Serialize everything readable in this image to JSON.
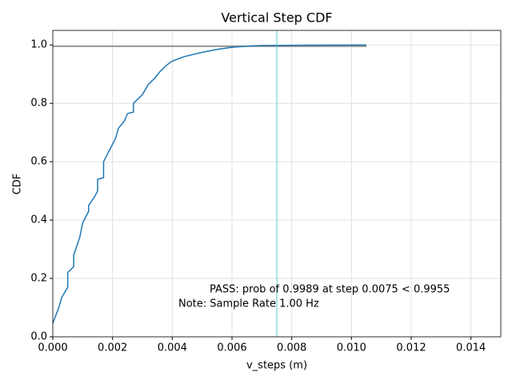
{
  "chart_data": {
    "type": "line",
    "title": "Vertical Step CDF",
    "x_label": "v_steps (m)",
    "y_label": "CDF",
    "x": [
      0,
      0.0002,
      0.0003,
      0.0005,
      0.0005,
      0.0007,
      0.0007,
      0.0008,
      0.0009,
      0.001,
      0.0012,
      0.0012,
      0.0014,
      0.0015,
      0.0015,
      0.0017,
      0.0017,
      0.0018,
      0.002,
      0.0021,
      0.0022,
      0.0024,
      0.0025,
      0.0027,
      0.0027,
      0.003,
      0.0032,
      0.0034,
      0.0036,
      0.0038,
      0.004,
      0.0044,
      0.005,
      0.0055,
      0.006,
      0.0065,
      0.007,
      0.008,
      0.009,
      0.0105
    ],
    "series": [
      {
        "color": "#1f77b4",
        "values": [
          0.047,
          0.1,
          0.135,
          0.17,
          0.22,
          0.24,
          0.28,
          0.31,
          0.34,
          0.39,
          0.43,
          0.45,
          0.48,
          0.5,
          0.54,
          0.545,
          0.6,
          0.62,
          0.66,
          0.68,
          0.715,
          0.74,
          0.765,
          0.77,
          0.8,
          0.83,
          0.865,
          0.885,
          0.91,
          0.93,
          0.945,
          0.96,
          0.975,
          0.985,
          0.992,
          0.996,
          0.998,
          0.999,
          0.9995,
          1.0
        ]
      }
    ],
    "hline": 0.9955,
    "hline_color": "#7f7f7f",
    "vline": 0.0075,
    "vline_color": "#5ec8c8",
    "annotations": [
      {
        "text": "PASS: prob of 0.9989 at step 0.0075 < 0.9955",
        "color": "#008000"
      },
      {
        "text": "Note: Sample Rate 1.00 Hz",
        "color": "#000000"
      }
    ],
    "xlim": [
      0,
      0.015
    ],
    "xticks": [
      {
        "value": 0,
        "label": "0.000"
      },
      {
        "value": 0.002,
        "label": "0.002"
      },
      {
        "value": 0.004,
        "label": "0.004"
      },
      {
        "value": 0.006,
        "label": "0.006"
      },
      {
        "value": 0.008,
        "label": "0.008"
      },
      {
        "value": 0.01,
        "label": "0.010"
      },
      {
        "value": 0.012,
        "label": "0.012"
      },
      {
        "value": 0.014,
        "label": "0.014"
      }
    ],
    "ylim": [
      0,
      1.05
    ],
    "yticks": [
      {
        "value": 0,
        "label": "0.0"
      },
      {
        "value": 0.2,
        "label": "0.2"
      },
      {
        "value": 0.4,
        "label": "0.4"
      },
      {
        "value": 0.6,
        "label": "0.6"
      },
      {
        "value": 0.8,
        "label": "0.8"
      },
      {
        "value": 1,
        "label": "1.0"
      }
    ],
    "grid": true
  }
}
